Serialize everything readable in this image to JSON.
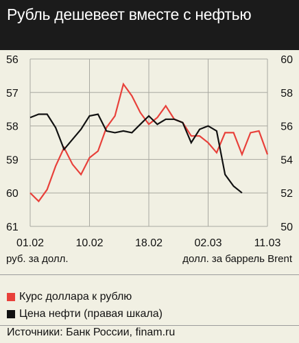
{
  "title": "Рубль дешевеет вместе с нефтью",
  "left_axis_label": "руб. за долл.",
  "right_axis_label": "долл. за баррель Brent",
  "source": "Источники: Банк России, finam.ru",
  "chart_data": {
    "type": "line",
    "title": "Рубль дешевеет вместе с нефтью",
    "x_tick_labels": [
      "01.02",
      "10.02",
      "18.02",
      "02.03",
      "11.03"
    ],
    "x": [
      0,
      1,
      2,
      3,
      4,
      5,
      6,
      7,
      8,
      9,
      10,
      11,
      12,
      13,
      14,
      15,
      16,
      17,
      18,
      19,
      20,
      21,
      22,
      23,
      24,
      25,
      26,
      27,
      28
    ],
    "x_tick_positions": [
      0,
      7,
      14,
      21,
      28
    ],
    "left_axis": {
      "label": "руб. за долл.",
      "min": 56,
      "max": 61,
      "inverted": true,
      "ticks": [
        56,
        57,
        58,
        59,
        60,
        61
      ]
    },
    "right_axis": {
      "label": "долл. за баррель Brent",
      "min": 50,
      "max": 60,
      "ticks": [
        60,
        58,
        56,
        54,
        52,
        50
      ]
    },
    "series": [
      {
        "name": "Курс доллара к рублю",
        "color": "#e8403a",
        "axis": "left",
        "values": [
          60.0,
          60.25,
          59.9,
          59.2,
          58.65,
          59.15,
          59.45,
          58.95,
          58.75,
          58.05,
          57.7,
          56.75,
          57.1,
          57.6,
          57.95,
          57.75,
          57.4,
          57.8,
          57.9,
          58.3,
          58.3,
          58.5,
          58.8,
          58.2,
          58.2,
          58.85,
          58.2,
          58.15,
          58.85
        ]
      },
      {
        "name": "Цена нефти (правая шкала)",
        "color": "#111111",
        "axis": "right",
        "values": [
          56.5,
          56.7,
          56.7,
          55.9,
          54.6,
          55.2,
          55.8,
          56.6,
          56.7,
          55.7,
          55.6,
          55.7,
          55.6,
          56.1,
          56.6,
          56.1,
          56.4,
          56.4,
          56.2,
          55.0,
          55.8,
          56.0,
          55.7,
          53.1,
          52.4,
          52.0,
          null,
          null,
          null
        ]
      }
    ],
    "grid": true
  },
  "legend": [
    {
      "label": "Курс доллара к рублю",
      "color": "#e8403a"
    },
    {
      "label": "Цена нефти (правая шкала)",
      "color": "#111111"
    }
  ]
}
